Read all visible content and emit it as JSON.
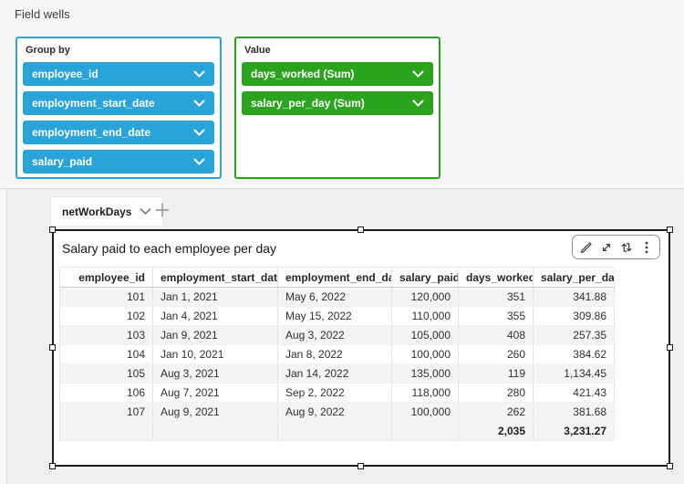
{
  "field_wells": {
    "title": "Field wells",
    "group_by": {
      "label": "Group by",
      "pills": [
        "employee_id",
        "employment_start_date",
        "employment_end_date",
        "salary_paid"
      ]
    },
    "value": {
      "label": "Value",
      "pills": [
        "days_worked (Sum)",
        "salary_per_day (Sum)"
      ]
    }
  },
  "sheet": {
    "tab_label": "netWorkDays"
  },
  "visual": {
    "title": "Salary paid to each employee per day",
    "table": {
      "columns": [
        "employee_id",
        "employment_start_date",
        "employment_end_date",
        "salary_paid",
        "days_worked",
        "salary_per_day"
      ],
      "rows": [
        [
          "101",
          "Jan 1, 2021",
          "May 6, 2022",
          "120,000",
          "351",
          "341.88"
        ],
        [
          "102",
          "Jan 4, 2021",
          "May 15, 2022",
          "110,000",
          "355",
          "309.86"
        ],
        [
          "103",
          "Jan 9, 2021",
          "Aug 3, 2022",
          "105,000",
          "408",
          "257.35"
        ],
        [
          "104",
          "Jan 10, 2021",
          "Jan 8, 2022",
          "100,000",
          "260",
          "384.62"
        ],
        [
          "105",
          "Aug 3, 2021",
          "Jan 14, 2022",
          "135,000",
          "119",
          "1,134.45"
        ],
        [
          "106",
          "Aug 7, 2021",
          "Sep 2, 2022",
          "118,000",
          "280",
          "421.43"
        ],
        [
          "107",
          "Aug 9, 2021",
          "Aug 9, 2022",
          "100,000",
          "262",
          "381.68"
        ]
      ],
      "totals": [
        "",
        "",
        "",
        "",
        "2,035",
        "3,231.27"
      ]
    }
  },
  "icons": {
    "pill_chevron": "chevron-down",
    "tab_chevron": "chevron-down",
    "add_tab": "plus",
    "toolbar": [
      "pencil-edit",
      "expand-diagonal",
      "swap-vertical-arrows",
      "kebab-menu"
    ]
  },
  "colors": {
    "dimension_blue": "#2AA4D8",
    "measure_green": "#2CA31F",
    "selection_border": "#1d1d1f"
  }
}
